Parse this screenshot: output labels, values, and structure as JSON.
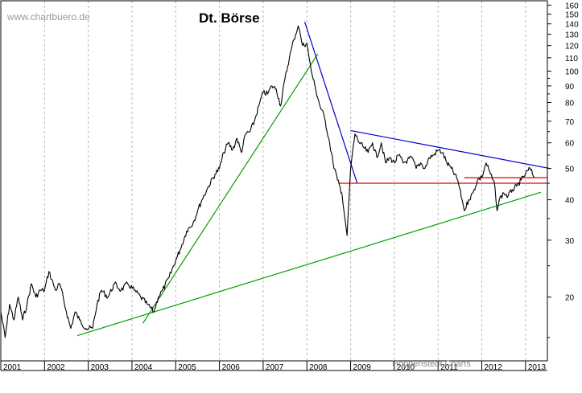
{
  "chart_data": {
    "type": "line",
    "title": "Dt. Börse",
    "watermark": "www.chartbuero.de",
    "credit": "Hoppenstedt Charts",
    "y_scale": "log",
    "ylim": [
      12.7,
      165
    ],
    "xlim": [
      2001.0,
      2013.5
    ],
    "y_ticks": [
      160,
      150,
      140,
      130,
      120,
      110,
      100,
      90,
      80,
      70,
      60,
      50,
      40,
      30,
      20
    ],
    "x_tick_labels": [
      "2001",
      "2002",
      "2003",
      "2004",
      "2005",
      "2006",
      "2007",
      "2008",
      "2009",
      "2010",
      "2011",
      "2012",
      "2013"
    ],
    "grid": true,
    "series": [
      {
        "name": "Dt. Börse",
        "color": "#000000",
        "x": [
          2001.0,
          2001.1,
          2001.2,
          2001.3,
          2001.4,
          2001.5,
          2001.6,
          2001.7,
          2001.8,
          2001.9,
          2002.0,
          2002.1,
          2002.25,
          2002.35,
          2002.5,
          2002.6,
          2002.7,
          2002.8,
          2002.95,
          2003.1,
          2003.2,
          2003.3,
          2003.45,
          2003.6,
          2003.75,
          2003.9,
          2004.05,
          2004.2,
          2004.35,
          2004.5,
          2004.6,
          2004.7,
          2004.85,
          2005.0,
          2005.1,
          2005.25,
          2005.4,
          2005.5,
          2005.6,
          2005.75,
          2005.9,
          2006.0,
          2006.1,
          2006.2,
          2006.3,
          2006.4,
          2006.5,
          2006.6,
          2006.7,
          2006.8,
          2006.9,
          2007.0,
          2007.1,
          2007.2,
          2007.3,
          2007.4,
          2007.5,
          2007.6,
          2007.7,
          2007.8,
          2007.85,
          2007.9,
          2008.0,
          2008.05,
          2008.1,
          2008.2,
          2008.3,
          2008.4,
          2008.5,
          2008.6,
          2008.7,
          2008.8,
          2008.87,
          2008.92,
          2009.0,
          2009.1,
          2009.2,
          2009.3,
          2009.4,
          2009.5,
          2009.6,
          2009.7,
          2009.8,
          2009.9,
          2010.0,
          2010.1,
          2010.2,
          2010.3,
          2010.4,
          2010.5,
          2010.6,
          2010.7,
          2010.8,
          2010.9,
          2011.0,
          2011.1,
          2011.2,
          2011.3,
          2011.45,
          2011.55,
          2011.6,
          2011.7,
          2011.8,
          2011.9,
          2012.0,
          2012.1,
          2012.2,
          2012.3,
          2012.35,
          2012.4,
          2012.5,
          2012.6,
          2012.7,
          2012.8,
          2012.9,
          2013.0,
          2013.1,
          2013.2
        ],
        "y": [
          18,
          15,
          19,
          17,
          20,
          17,
          19,
          22,
          20,
          21,
          21,
          24,
          21,
          22,
          18,
          16,
          18,
          17,
          16,
          16,
          19,
          21,
          20,
          22,
          21,
          22,
          21,
          20,
          19,
          18,
          20,
          21,
          23,
          26,
          28,
          32,
          34,
          37,
          40,
          44,
          48,
          50,
          56,
          60,
          57,
          62,
          56,
          64,
          65,
          70,
          78,
          86,
          85,
          90,
          88,
          78,
          95,
          110,
          125,
          138,
          130,
          120,
          122,
          110,
          100,
          88,
          78,
          72,
          62,
          52,
          46,
          42,
          35,
          31,
          50,
          64,
          60,
          58,
          56,
          60,
          54,
          60,
          52,
          54,
          52,
          55,
          52,
          53,
          54,
          50,
          52,
          50,
          54,
          55,
          57,
          56,
          52,
          50,
          46,
          40,
          37,
          40,
          42,
          46,
          47,
          52,
          48,
          44,
          37,
          40,
          42,
          41,
          43,
          44,
          46,
          48,
          50,
          47
        ]
      }
    ],
    "trendlines": [
      {
        "name": "green-support-long",
        "color": "#00a000",
        "x": [
          2002.75,
          2013.35
        ],
        "y": [
          15.2,
          42.2
        ]
      },
      {
        "name": "green-support-steep",
        "color": "#00a000",
        "x": [
          2004.25,
          2008.25
        ],
        "y": [
          16.6,
          113
        ]
      },
      {
        "name": "blue-resistance-steep",
        "color": "#0000d0",
        "x": [
          2007.95,
          2009.15
        ],
        "y": [
          142,
          45
        ]
      },
      {
        "name": "blue-resistance-flat",
        "color": "#0000d0",
        "x": [
          2009.0,
          2013.55
        ],
        "y": [
          65.5,
          50
        ]
      },
      {
        "name": "red-horizontal-upper",
        "color": "#e00000",
        "x": [
          2011.6,
          2013.5
        ],
        "y": [
          46.8,
          46.8
        ]
      },
      {
        "name": "red-horizontal-lower",
        "color": "#e00000",
        "x": [
          2008.72,
          2013.5
        ],
        "y": [
          45.0,
          45.0
        ]
      }
    ]
  }
}
